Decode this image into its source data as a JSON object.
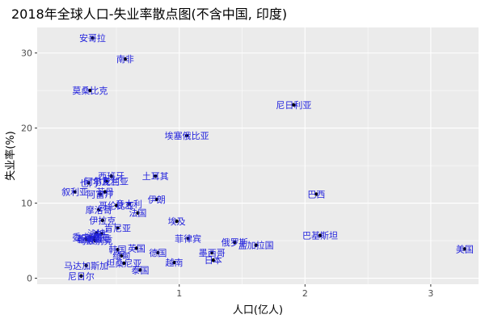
{
  "chart_data": {
    "type": "scatter",
    "title": "2018年全球人口-失业率散点图(不含中国, 印度)",
    "xlabel": "人口(亿人)",
    "ylabel": "失业率(%)",
    "xlim": [
      -0.13,
      3.38
    ],
    "ylim": [
      -0.8,
      33.4
    ],
    "xticks": [
      1,
      2,
      3
    ],
    "yticks": [
      0,
      10,
      20,
      30
    ],
    "grid": true,
    "background": "#ebebeb",
    "point_color": "#000000",
    "label_color": "#2222dd",
    "points": [
      {
        "label": "安哥拉",
        "x": 0.31,
        "y": 32.0
      },
      {
        "label": "南非",
        "x": 0.57,
        "y": 29.2
      },
      {
        "label": "莫桑比克",
        "x": 0.29,
        "y": 25.0
      },
      {
        "label": "尼日利亚",
        "x": 1.91,
        "y": 23.1
      },
      {
        "label": "埃塞俄比亚",
        "x": 1.06,
        "y": 19.0
      },
      {
        "label": "土耳其",
        "x": 0.81,
        "y": 13.6
      },
      {
        "label": "西班牙",
        "x": 0.46,
        "y": 13.6
      },
      {
        "label": "乌克兰",
        "x": 0.42,
        "y": 12.9
      },
      {
        "label": "阿尔及利亚",
        "x": 0.42,
        "y": 12.9
      },
      {
        "label": "也门",
        "x": 0.28,
        "y": 12.7
      },
      {
        "label": "叙利亚",
        "x": 0.17,
        "y": 11.5
      },
      {
        "label": "苏丹",
        "x": 0.41,
        "y": 11.5
      },
      {
        "label": "阿富汗",
        "x": 0.37,
        "y": 11.2
      },
      {
        "label": "巴西",
        "x": 2.09,
        "y": 11.2
      },
      {
        "label": "伊朗",
        "x": 0.82,
        "y": 10.5
      },
      {
        "label": "哥伦比亚",
        "x": 0.5,
        "y": 9.7
      },
      {
        "label": "摩洛哥",
        "x": 0.36,
        "y": 9.1
      },
      {
        "label": "意大利",
        "x": 0.6,
        "y": 9.9
      },
      {
        "label": "法国",
        "x": 0.67,
        "y": 8.7
      },
      {
        "label": "伊拉克",
        "x": 0.39,
        "y": 7.7
      },
      {
        "label": "埃及",
        "x": 0.98,
        "y": 7.6
      },
      {
        "label": "肯尼亚",
        "x": 0.51,
        "y": 6.7
      },
      {
        "label": "沙特",
        "x": 0.34,
        "y": 6.0
      },
      {
        "label": "波兰",
        "x": 0.38,
        "y": 5.9
      },
      {
        "label": "秘鲁",
        "x": 0.32,
        "y": 5.4
      },
      {
        "label": "委内瑞拉",
        "x": 0.29,
        "y": 5.5
      },
      {
        "label": "马来西亚",
        "x": 0.32,
        "y": 5.2
      },
      {
        "label": "巴基斯坦",
        "x": 2.12,
        "y": 5.7
      },
      {
        "label": "菲律宾",
        "x": 1.07,
        "y": 5.3
      },
      {
        "label": "俄罗斯",
        "x": 1.44,
        "y": 4.8
      },
      {
        "label": "孟加拉国",
        "x": 1.61,
        "y": 4.4
      },
      {
        "label": "朝鲜",
        "x": 0.26,
        "y": 5.2
      },
      {
        "label": "乌兹别克",
        "x": 0.33,
        "y": 5.0
      },
      {
        "label": "韩国",
        "x": 0.51,
        "y": 3.8
      },
      {
        "label": "英国",
        "x": 0.66,
        "y": 4.0
      },
      {
        "label": "德国",
        "x": 0.83,
        "y": 3.4
      },
      {
        "label": "墨西哥",
        "x": 1.26,
        "y": 3.4
      },
      {
        "label": "美国",
        "x": 3.27,
        "y": 3.9
      },
      {
        "label": "缅甸",
        "x": 0.54,
        "y": 3.0
      },
      {
        "label": "日本",
        "x": 1.27,
        "y": 2.4
      },
      {
        "label": "越南",
        "x": 0.96,
        "y": 2.1
      },
      {
        "label": "马达加斯加",
        "x": 0.26,
        "y": 1.7
      },
      {
        "label": "坦桑尼亚",
        "x": 0.56,
        "y": 2.0
      },
      {
        "label": "泰国",
        "x": 0.69,
        "y": 1.1
      },
      {
        "label": "尼日尔",
        "x": 0.22,
        "y": 0.3
      }
    ]
  }
}
